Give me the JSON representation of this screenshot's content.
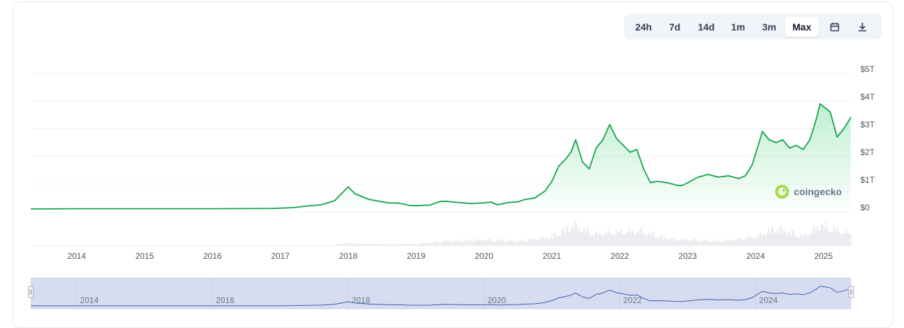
{
  "toolbar": {
    "buttons": [
      {
        "label": "24h",
        "active": false
      },
      {
        "label": "7d",
        "active": false
      },
      {
        "label": "14d",
        "active": false
      },
      {
        "label": "1m",
        "active": false
      },
      {
        "label": "3m",
        "active": false
      },
      {
        "label": "Max",
        "active": true
      }
    ],
    "icons": [
      "calendar-icon",
      "download-icon"
    ]
  },
  "brand": {
    "name": "coingecko",
    "logo": "coingecko-gecko-logo"
  },
  "colors": {
    "line": "#16a34a",
    "area": "#22c55e",
    "volume": "#e5e7eb",
    "navigator_fill": "#d7ddf0",
    "navigator_line": "#3b5bb5",
    "grid": "#eef0f3"
  },
  "chart_data": {
    "type": "area",
    "title": "",
    "xlabel": "",
    "ylabel": "",
    "y_ticks": [
      "$0",
      "$1T",
      "$2T",
      "$3T",
      "$4T",
      "$5T"
    ],
    "ylim": [
      0,
      5
    ],
    "y_unit": "trillion USD",
    "x_ticks": [
      "2014",
      "2015",
      "2016",
      "2017",
      "2018",
      "2019",
      "2020",
      "2021",
      "2022",
      "2023",
      "2024",
      "2025"
    ],
    "xlim": [
      2013.33,
      2025.4
    ],
    "grid": true,
    "legend": "none",
    "series": [
      {
        "x": [
          2013.33,
          2014.0,
          2015.0,
          2016.0,
          2016.9,
          2017.2,
          2017.4,
          2017.6,
          2017.8,
          2017.9,
          2018.0,
          2018.1,
          2018.2,
          2018.3,
          2018.45,
          2018.6,
          2018.75,
          2018.9,
          2019.0,
          2019.2,
          2019.35,
          2019.45,
          2019.55,
          2019.7,
          2019.8,
          2020.0,
          2020.1,
          2020.2,
          2020.35,
          2020.5,
          2020.6,
          2020.75,
          2020.9,
          2021.0,
          2021.1,
          2021.2,
          2021.28,
          2021.35,
          2021.45,
          2021.55,
          2021.65,
          2021.75,
          2021.85,
          2021.95,
          2022.05,
          2022.15,
          2022.25,
          2022.35,
          2022.45,
          2022.55,
          2022.7,
          2022.85,
          2022.92,
          2023.0,
          2023.15,
          2023.3,
          2023.45,
          2023.6,
          2023.75,
          2023.85,
          2023.95,
          2024.1,
          2024.2,
          2024.3,
          2024.4,
          2024.5,
          2024.6,
          2024.7,
          2024.8,
          2024.9,
          2024.95,
          2025.0,
          2025.1,
          2025.2,
          2025.3,
          2025.4
        ],
        "values": [
          0.0,
          0.01,
          0.01,
          0.01,
          0.02,
          0.05,
          0.11,
          0.15,
          0.3,
          0.55,
          0.8,
          0.55,
          0.45,
          0.35,
          0.28,
          0.22,
          0.21,
          0.13,
          0.12,
          0.14,
          0.27,
          0.28,
          0.25,
          0.22,
          0.2,
          0.22,
          0.25,
          0.15,
          0.23,
          0.26,
          0.34,
          0.4,
          0.65,
          1.0,
          1.55,
          1.8,
          2.05,
          2.5,
          1.7,
          1.45,
          2.2,
          2.5,
          3.05,
          2.55,
          2.3,
          2.05,
          2.15,
          1.45,
          0.95,
          1.0,
          0.95,
          0.85,
          0.85,
          0.95,
          1.15,
          1.25,
          1.15,
          1.2,
          1.1,
          1.2,
          1.6,
          2.8,
          2.5,
          2.4,
          2.5,
          2.2,
          2.3,
          2.15,
          2.5,
          3.3,
          3.8,
          3.7,
          3.5,
          2.6,
          2.9,
          3.3
        ]
      }
    ],
    "volume_series": {
      "x": [
        2017.8,
        2018.0,
        2018.5,
        2019.0,
        2019.5,
        2020.0,
        2020.5,
        2021.0,
        2021.3,
        2021.6,
        2021.9,
        2022.3,
        2022.7,
        2023.0,
        2023.5,
        2024.0,
        2024.3,
        2024.7,
        2024.95,
        2025.2,
        2025.4
      ],
      "values": [
        0.02,
        0.04,
        0.02,
        0.03,
        0.08,
        0.1,
        0.08,
        0.15,
        0.35,
        0.2,
        0.22,
        0.25,
        0.12,
        0.1,
        0.08,
        0.15,
        0.3,
        0.15,
        0.35,
        0.25,
        0.2
      ]
    },
    "navigator": {
      "x_ticks": [
        "2014",
        "2016",
        "2018",
        "2020",
        "2022",
        "2024"
      ]
    }
  }
}
